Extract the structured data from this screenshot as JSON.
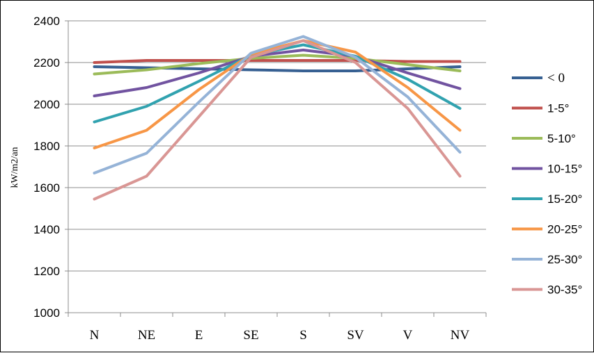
{
  "chart_data": {
    "type": "line",
    "ylabel": "kW/m2/an",
    "xlabel": "",
    "title": "",
    "ylim": [
      1000,
      2400
    ],
    "yticks": [
      1000,
      1200,
      1400,
      1600,
      1800,
      2000,
      2200,
      2400
    ],
    "categories": [
      "N",
      "NE",
      "E",
      "SE",
      "S",
      "SV",
      "V",
      "NV"
    ],
    "grid": "horizontal",
    "legend_position": "right",
    "series": [
      {
        "name": "< 0",
        "color": "#376092",
        "values": [
          2180,
          2175,
          2170,
          2165,
          2160,
          2160,
          2170,
          2180
        ]
      },
      {
        "name": "1-5°",
        "color": "#C0504D",
        "values": [
          2200,
          2210,
          2210,
          2210,
          2210,
          2210,
          2205,
          2205
        ]
      },
      {
        "name": "5-10°",
        "color": "#9BBB59",
        "values": [
          2145,
          2165,
          2195,
          2220,
          2235,
          2220,
          2190,
          2160
        ]
      },
      {
        "name": "10-15°",
        "color": "#7153A0",
        "values": [
          2040,
          2080,
          2150,
          2230,
          2260,
          2230,
          2150,
          2075
        ]
      },
      {
        "name": "15-20°",
        "color": "#31A2AF",
        "values": [
          1915,
          1990,
          2110,
          2235,
          2285,
          2230,
          2120,
          1980
        ]
      },
      {
        "name": "20-25°",
        "color": "#F79646",
        "values": [
          1790,
          1875,
          2070,
          2240,
          2305,
          2250,
          2080,
          1875
        ]
      },
      {
        "name": "25-30°",
        "color": "#95B3D7",
        "values": [
          1670,
          1765,
          2010,
          2245,
          2325,
          2225,
          2035,
          1770
        ]
      },
      {
        "name": "30-35°",
        "color": "#D99694",
        "values": [
          1545,
          1655,
          1940,
          2225,
          2305,
          2200,
          1980,
          1655
        ]
      }
    ]
  }
}
